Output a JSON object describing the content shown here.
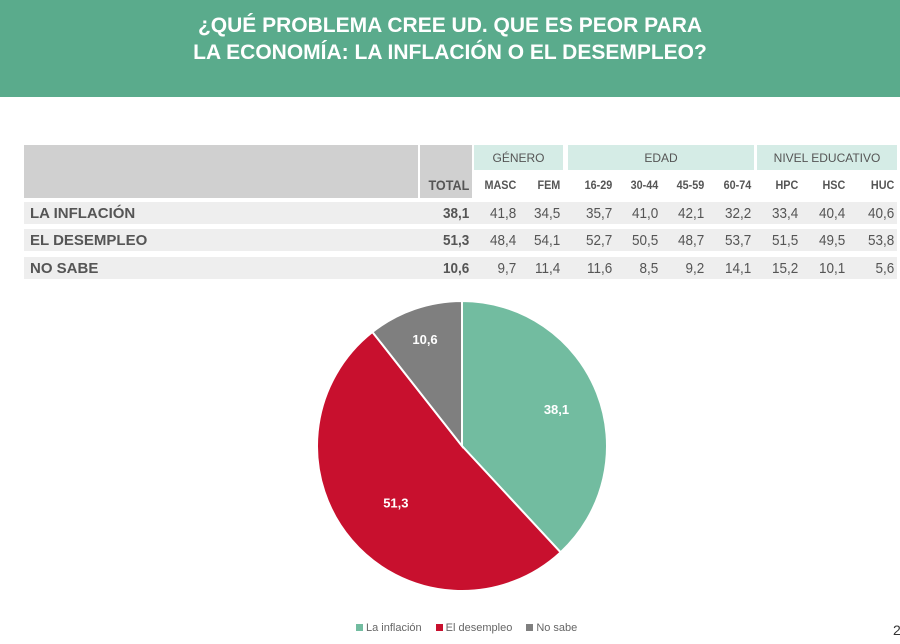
{
  "title": [
    "¿QUÉ PROBLEMA CREE UD. QUE ES PEOR PARA",
    "LA ECONOMÍA: LA INFLACIÓN O EL DESEMPLEO?"
  ],
  "table": {
    "groups": [
      "GÉNERO",
      "EDAD",
      "NIVEL EDUCATIVO"
    ],
    "columns": [
      "TOTAL",
      "MASC",
      "FEM",
      "16-29",
      "30-44",
      "45-59",
      "60-74",
      "HPC",
      "HSC",
      "HUC"
    ],
    "rows": [
      {
        "label": "LA INFLACIÓN",
        "values": [
          "38,1",
          "41,8",
          "34,5",
          "35,7",
          "41,0",
          "42,1",
          "32,2",
          "33,4",
          "40,4",
          "40,6"
        ]
      },
      {
        "label": "EL DESEMPLEO",
        "values": [
          "51,3",
          "48,4",
          "54,1",
          "52,7",
          "50,5",
          "48,7",
          "53,7",
          "51,5",
          "49,5",
          "53,8"
        ]
      },
      {
        "label": "NO SABE",
        "values": [
          "10,6",
          "9,7",
          "11,4",
          "11,6",
          "8,5",
          "9,2",
          "14,1",
          "15,2",
          "10,1",
          "5,6"
        ]
      }
    ]
  },
  "chart_data": {
    "type": "pie",
    "categories": [
      "La inflación",
      "El desempleo",
      "No sabe"
    ],
    "values": [
      38.1,
      51.3,
      10.6
    ],
    "labels": [
      "38,1",
      "51,3",
      "10,6"
    ],
    "colors": [
      "#72bca0",
      "#c8102e",
      "#7f7f7f"
    ],
    "legend": "bottom"
  },
  "page_number": "2"
}
